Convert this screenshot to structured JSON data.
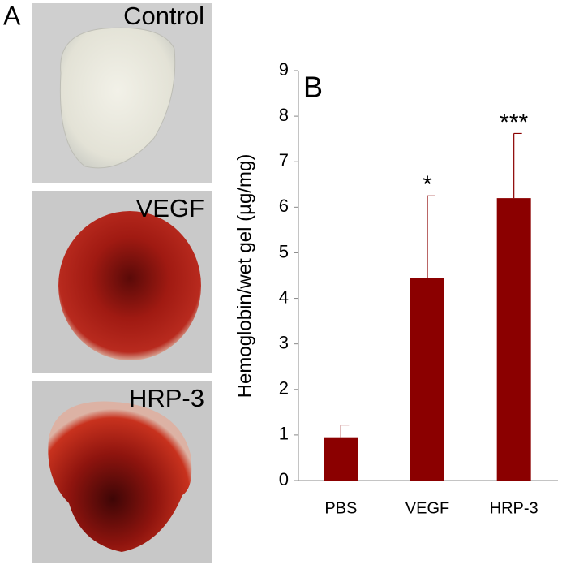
{
  "figure": {
    "panel_a_label": "A",
    "panel_b_label": "B",
    "photos": [
      "Control",
      "VEGF",
      "HRP-3"
    ]
  },
  "chart_data": {
    "type": "bar",
    "ylabel": "Hemoglobin/wet gel (µg/mg)",
    "categories": [
      "PBS",
      "VEGF",
      "HRP-3"
    ],
    "values": [
      0.95,
      4.45,
      6.2
    ],
    "errors": [
      0.27,
      1.8,
      1.42
    ],
    "value_annotations": [
      null,
      "*",
      "***"
    ],
    "color": "#8b0000",
    "ylim": [
      0,
      9
    ],
    "yticks": [
      0,
      1,
      2,
      3,
      4,
      5,
      6,
      7,
      8,
      9
    ]
  }
}
